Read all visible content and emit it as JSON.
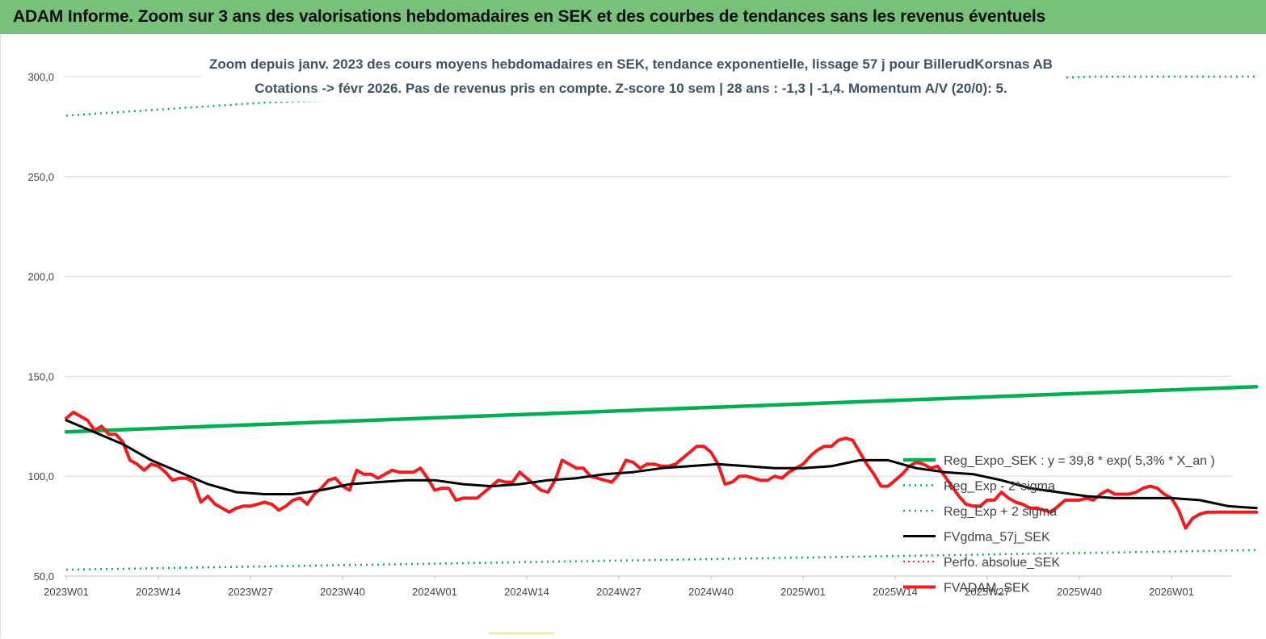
{
  "header": {
    "title": "ADAM Informe. Zoom sur 3 ans des valorisations hebdomadaires en SEK et des courbes de tendances sans les revenus éventuels"
  },
  "colors": {
    "header_bg": "#77c17a",
    "reg_expo": "#00b050",
    "fvgdma": "#000000",
    "fvadam": "#ee1c1c",
    "perfo": "#e02020",
    "title_text": "#3e5168"
  },
  "chart_data": {
    "type": "line",
    "title": [
      "Zoom depuis janv. 2023 des cours moyens hebdomadaires en SEK, tendance exponentielle, lissage 57 j pour BillerudKorsnas AB",
      "Cotations -> févr 2026.  Pas de revenus pris en compte. Z-score 10 sem  | 28 ans : -1,3  | -1,4. Momentum A/V (20/0): 5."
    ],
    "xlabel": "",
    "ylabel": "",
    "ylim": [
      50,
      300
    ],
    "yticks": [
      "300,0",
      "250,0",
      "200,0",
      "150,0",
      "100,0",
      "50,0"
    ],
    "yticks_values": [
      300,
      250,
      200,
      150,
      100,
      50
    ],
    "xticks": [
      "2023W01",
      "2023W14",
      "2023W27",
      "2023W40",
      "2024W01",
      "2024W14",
      "2024W27",
      "2024W40",
      "2025W01",
      "2025W14",
      "2025W27",
      "2025W40",
      "2026W01"
    ],
    "x_range_weeks": [
      0,
      168
    ],
    "grid": "horizontal",
    "legend_position": "bottom-right",
    "series": [
      {
        "name": "Reg_Expo_SEK : y = 39,8 * exp( 5,3% *  X_an )",
        "style": "solid-thick",
        "x": [
          0,
          168
        ],
        "y": [
          122.2,
          144.8
        ]
      },
      {
        "name": "Reg_Exp - 2*sigma",
        "style": "dotted",
        "x": [
          0,
          168
        ],
        "y": [
          53.2,
          63.0
        ]
      },
      {
        "name": "Reg_Exp + 2 sigma",
        "style": "dotted",
        "x": [
          0,
          28,
          145,
          168
        ],
        "y": [
          280.5,
          287.0,
          300.0,
          300.0
        ]
      },
      {
        "name": "FVgdma_57j_SEK",
        "style": "solid",
        "x": [
          0,
          4,
          8,
          12,
          16,
          20,
          24,
          28,
          32,
          36,
          40,
          44,
          48,
          52,
          56,
          60,
          64,
          68,
          72,
          76,
          80,
          84,
          88,
          92,
          96,
          100,
          104,
          108,
          112,
          116,
          120,
          124,
          128,
          132,
          136,
          140,
          144,
          148,
          152,
          156,
          160,
          164,
          168
        ],
        "y": [
          128,
          122,
          116,
          108,
          102,
          96,
          92,
          91,
          91,
          93,
          96,
          97,
          98,
          98,
          96,
          95,
          96,
          98,
          99,
          101,
          102,
          104,
          105,
          106,
          105,
          104,
          104,
          105,
          108,
          108,
          104,
          102,
          101,
          98,
          94,
          92,
          90,
          89,
          89,
          89,
          88,
          85,
          84
        ]
      },
      {
        "name": "Perfo. absolue_SEK",
        "style": "dotted",
        "x": [],
        "y": []
      },
      {
        "name": "FVADAM_SEK",
        "style": "solid-thick",
        "x": [
          0,
          1,
          2,
          3,
          4,
          5,
          6,
          7,
          8,
          9,
          10,
          11,
          12,
          13,
          14,
          15,
          16,
          17,
          18,
          19,
          20,
          21,
          22,
          23,
          24,
          25,
          26,
          27,
          28,
          29,
          30,
          31,
          32,
          33,
          34,
          35,
          36,
          37,
          38,
          39,
          40,
          41,
          42,
          43,
          44,
          45,
          46,
          47,
          48,
          49,
          50,
          51,
          52,
          53,
          54,
          55,
          56,
          57,
          58,
          59,
          60,
          61,
          62,
          63,
          64,
          65,
          66,
          67,
          68,
          69,
          70,
          71,
          72,
          73,
          74,
          75,
          76,
          77,
          78,
          79,
          80,
          81,
          82,
          83,
          84,
          85,
          86,
          87,
          88,
          89,
          90,
          91,
          92,
          93,
          94,
          95,
          96,
          97,
          98,
          99,
          100,
          101,
          102,
          103,
          104,
          105,
          106,
          107,
          108,
          109,
          110,
          111,
          112,
          113,
          114,
          115,
          116,
          117,
          118,
          119,
          120,
          121,
          122,
          123,
          124,
          125,
          126,
          127,
          128,
          129,
          130,
          131,
          132,
          133,
          134,
          135,
          136,
          137,
          138,
          139,
          140,
          141,
          142,
          143,
          144,
          145,
          146,
          147,
          148,
          149,
          150,
          151,
          152,
          153,
          154,
          155,
          156,
          157,
          158,
          159,
          160,
          161,
          162,
          163,
          164,
          165,
          166,
          167,
          168
        ],
        "y": [
          129,
          132,
          130,
          128,
          123,
          125,
          121,
          121,
          117,
          108,
          106,
          103,
          106,
          105,
          102,
          98,
          99,
          99,
          97,
          87,
          90,
          86,
          84,
          82,
          84,
          85,
          85,
          86,
          87,
          86,
          83,
          85,
          88,
          89,
          86,
          91,
          94,
          98,
          99,
          95,
          93,
          103,
          101,
          101,
          99,
          101,
          103,
          102,
          102,
          102,
          104,
          99,
          93,
          94,
          94,
          88,
          89,
          89,
          89,
          92,
          95,
          98,
          97,
          97,
          102,
          99,
          96,
          93,
          92,
          98,
          108,
          106,
          104,
          104,
          100,
          99,
          98,
          97,
          101,
          108,
          107,
          104,
          106,
          106,
          105,
          105,
          106,
          109,
          112,
          115,
          115,
          112,
          106,
          96,
          97,
          100,
          100,
          99,
          98,
          98,
          100,
          99,
          102,
          104,
          106,
          110,
          113,
          115,
          115,
          118,
          119,
          118,
          112,
          106,
          101,
          95,
          95,
          98,
          101,
          105,
          107,
          106,
          104,
          105,
          100,
          95,
          90,
          86,
          85,
          85,
          88,
          88,
          92,
          89,
          87,
          86,
          84,
          84,
          83,
          82,
          85,
          88,
          88,
          88,
          89,
          88,
          91,
          93,
          91,
          91,
          91,
          92,
          94,
          95,
          94,
          91,
          89,
          83,
          74,
          79,
          81,
          82,
          82,
          82,
          82,
          82,
          82,
          82,
          82
        ]
      }
    ]
  }
}
